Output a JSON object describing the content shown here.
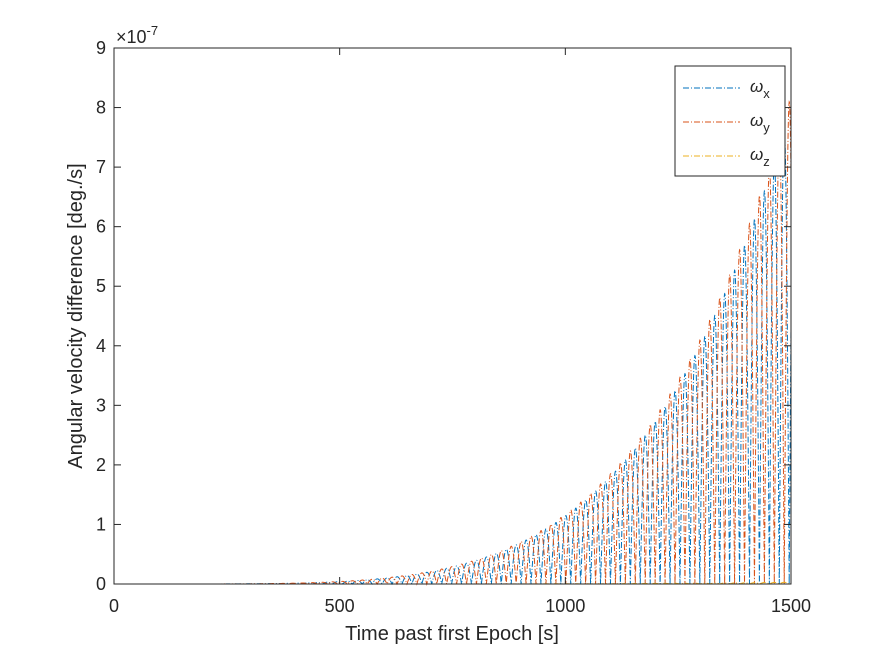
{
  "chart_data": {
    "type": "line",
    "xlabel": "Time past first Epoch [s]",
    "ylabel": "Angular velocity difference [deg./s]",
    "xlim": [
      0,
      1500
    ],
    "ylim": [
      0,
      9e-07
    ],
    "exponent_label": "×10",
    "exponent_power": "-7",
    "xticks": [
      0,
      500,
      1000,
      1500
    ],
    "xtick_labels": [
      "0",
      "500",
      "1000",
      "1500"
    ],
    "yticks": [
      0,
      1e-07,
      2e-07,
      3e-07,
      4e-07,
      5e-07,
      6e-07,
      7e-07,
      8e-07,
      9e-07
    ],
    "ytick_labels": [
      "0",
      "1",
      "2",
      "3",
      "4",
      "5",
      "6",
      "7",
      "8",
      "9"
    ],
    "grid": false,
    "legend_position": "top-right",
    "line_style": "dash-dot",
    "envelope_model": "amplitude ≈ 8.1e-7 · (t/1500)^4.8, oscillating with period ≈ 44 s",
    "envelope_samples": {
      "x": [
        700,
        800,
        900,
        1000,
        1100,
        1200,
        1300,
        1400,
        1475,
        1500
      ],
      "x_peak": [
        1.9e-08,
        4e-08,
        6.8e-08,
        1.1e-07,
        1.8e-07,
        2.9e-07,
        4.4e-07,
        6e-07,
        7.9e-07,
        8.1e-07
      ],
      "y_peak": [
        1.8e-08,
        3.9e-08,
        6.7e-08,
        1.1e-07,
        1.8e-07,
        2.9e-07,
        4.5e-07,
        6.2e-07,
        7.8e-07,
        8.2e-07
      ],
      "z_peak": [
        0,
        0,
        0,
        0,
        0,
        0,
        0,
        0,
        0,
        0
      ]
    },
    "series": [
      {
        "name": "ω",
        "subscript": "x",
        "color": "#0072BD",
        "peak": 8e-07,
        "phase_deg": 0
      },
      {
        "name": "ω",
        "subscript": "y",
        "color": "#D95319",
        "peak": 8.2e-07,
        "phase_deg": 90
      },
      {
        "name": "ω",
        "subscript": "z",
        "color": "#EDB120",
        "peak": 3e-09,
        "phase_deg": 0
      }
    ]
  }
}
